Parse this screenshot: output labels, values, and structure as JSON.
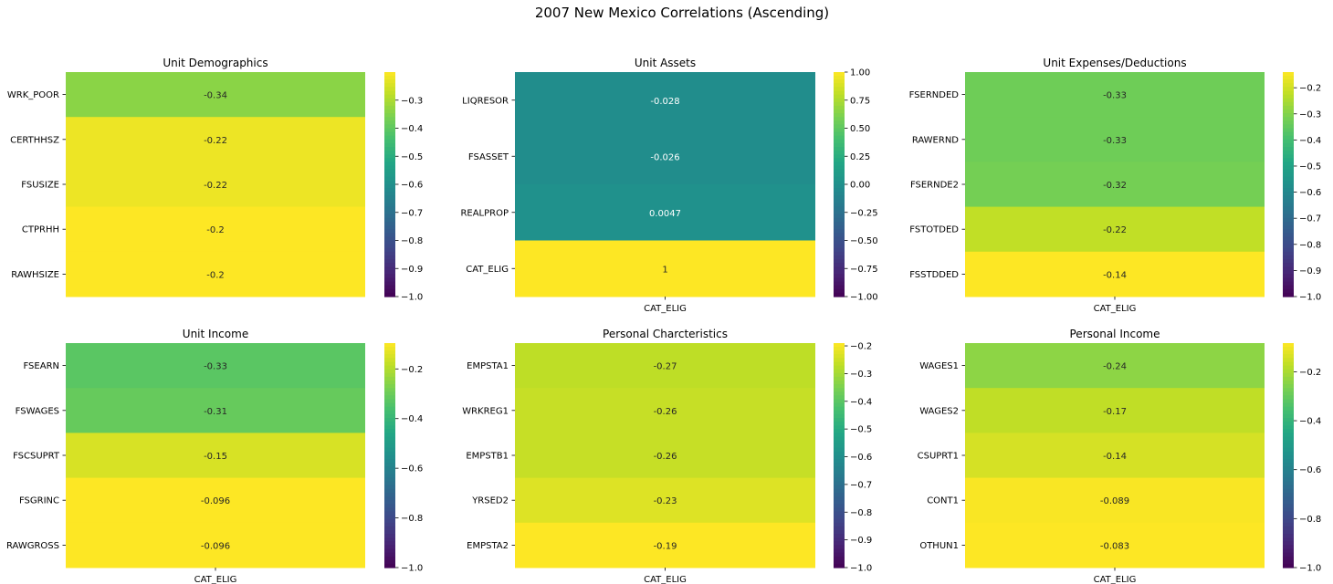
{
  "figure": {
    "title": "2007 New Mexico Correlations (Ascending)"
  },
  "chart_data": [
    {
      "type": "heatmap",
      "title": "Unit Demographics",
      "xlabel": "",
      "columns": [],
      "rows": [
        "WRK_POOR",
        "CERTHHSZ",
        "FSUSIZE",
        "CTPRHH",
        "RAWHSIZE"
      ],
      "values": [
        -0.34,
        -0.22,
        -0.22,
        -0.2,
        -0.2
      ],
      "labels": [
        "-0.34",
        "-0.22",
        "-0.22",
        "-0.2",
        "-0.2"
      ],
      "colorbar": {
        "min": -1.0,
        "max": -0.2,
        "ticks": [
          -0.3,
          -0.4,
          -0.5,
          -0.6,
          -0.7,
          -0.8,
          -0.9,
          -1.0
        ],
        "tick_labels": [
          "−0.3",
          "−0.4",
          "−0.5",
          "−0.6",
          "−0.7",
          "−0.8",
          "−0.9",
          "−1.0"
        ]
      },
      "colormap": "viridis"
    },
    {
      "type": "heatmap",
      "title": "Unit Assets",
      "xlabel": "CAT_ELIG",
      "columns": [
        "CAT_ELIG"
      ],
      "rows": [
        "LIQRESOR",
        "FSASSET",
        "REALPROP",
        "CAT_ELIG"
      ],
      "values": [
        -0.028,
        -0.026,
        0.0047,
        1
      ],
      "labels": [
        "-0.028",
        "-0.026",
        "0.0047",
        "1"
      ],
      "colorbar": {
        "min": -1.0,
        "max": 1.0,
        "ticks": [
          1.0,
          0.75,
          0.5,
          0.25,
          0.0,
          -0.25,
          -0.5,
          -0.75,
          -1.0
        ],
        "tick_labels": [
          "1.00",
          "0.75",
          "0.50",
          "0.25",
          "0.00",
          "−0.25",
          "−0.50",
          "−0.75",
          "−1.00"
        ]
      },
      "colormap": "viridis"
    },
    {
      "type": "heatmap",
      "title": "Unit Expenses/Deductions",
      "xlabel": "CAT_ELIG",
      "columns": [
        "CAT_ELIG"
      ],
      "rows": [
        "FSERNDED",
        "RAWERND",
        "FSERNDE2",
        "FSTOTDED",
        "FSSTDDED"
      ],
      "values": [
        -0.33,
        -0.33,
        -0.32,
        -0.22,
        -0.14
      ],
      "labels": [
        "-0.33",
        "-0.33",
        "-0.32",
        "-0.22",
        "-0.14"
      ],
      "colorbar": {
        "min": -1.0,
        "max": -0.14,
        "ticks": [
          -0.2,
          -0.3,
          -0.4,
          -0.5,
          -0.6,
          -0.7,
          -0.8,
          -0.9,
          -1.0
        ],
        "tick_labels": [
          "−0.2",
          "−0.3",
          "−0.4",
          "−0.5",
          "−0.6",
          "−0.7",
          "−0.8",
          "−0.9",
          "−1.0"
        ]
      },
      "colormap": "viridis"
    },
    {
      "type": "heatmap",
      "title": "Unit Income",
      "xlabel": "CAT_ELIG",
      "columns": [
        "CAT_ELIG"
      ],
      "rows": [
        "FSEARN",
        "FSWAGES",
        "FSCSUPRT",
        "FSGRINC",
        "RAWGROSS"
      ],
      "values": [
        -0.33,
        -0.31,
        -0.15,
        -0.096,
        -0.096
      ],
      "labels": [
        "-0.33",
        "-0.31",
        "-0.15",
        "-0.096",
        "-0.096"
      ],
      "colorbar": {
        "min": -1.0,
        "max": -0.096,
        "ticks": [
          -0.2,
          -0.4,
          -0.6,
          -0.8,
          -1.0
        ],
        "tick_labels": [
          "−0.2",
          "−0.4",
          "−0.6",
          "−0.8",
          "−1.0"
        ]
      },
      "colormap": "viridis"
    },
    {
      "type": "heatmap",
      "title": "Personal Charcteristics",
      "xlabel": "CAT_ELIG",
      "columns": [
        "CAT_ELIG"
      ],
      "rows": [
        "EMPSTA1",
        "WRKREG1",
        "EMPSTB1",
        "YRSED2",
        "EMPSTA2"
      ],
      "values": [
        -0.27,
        -0.26,
        -0.26,
        -0.23,
        -0.19
      ],
      "labels": [
        "-0.27",
        "-0.26",
        "-0.26",
        "-0.23",
        "-0.19"
      ],
      "colorbar": {
        "min": -1.0,
        "max": -0.19,
        "ticks": [
          -0.2,
          -0.3,
          -0.4,
          -0.5,
          -0.6,
          -0.7,
          -0.8,
          -0.9,
          -1.0
        ],
        "tick_labels": [
          "−0.2",
          "−0.3",
          "−0.4",
          "−0.5",
          "−0.6",
          "−0.7",
          "−0.8",
          "−0.9",
          "−1.0"
        ]
      },
      "colormap": "viridis"
    },
    {
      "type": "heatmap",
      "title": "Personal Income",
      "xlabel": "CAT_ELIG",
      "columns": [
        "CAT_ELIG"
      ],
      "rows": [
        "WAGES1",
        "WAGES2",
        "CSUPRT1",
        "CONT1",
        "OTHUN1"
      ],
      "values": [
        -0.24,
        -0.17,
        -0.14,
        -0.089,
        -0.083
      ],
      "labels": [
        "-0.24",
        "-0.17",
        "-0.14",
        "-0.089",
        "-0.083"
      ],
      "colorbar": {
        "min": -1.0,
        "max": -0.083,
        "ticks": [
          -0.2,
          -0.4,
          -0.6,
          -0.8,
          -1.0
        ],
        "tick_labels": [
          "−0.2",
          "−0.4",
          "−0.6",
          "−0.8",
          "−1.0"
        ]
      },
      "colormap": "viridis"
    }
  ]
}
